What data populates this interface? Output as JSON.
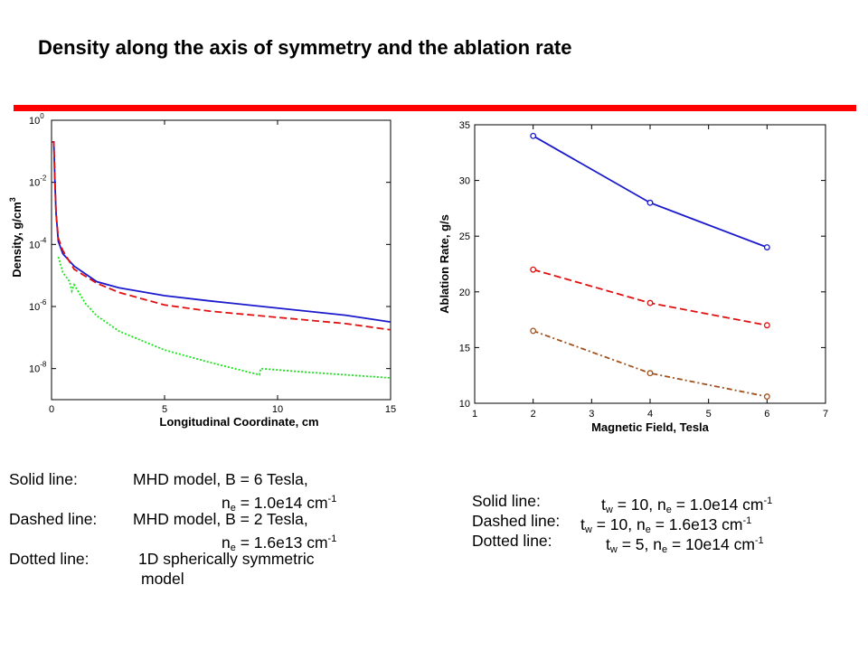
{
  "slide": {
    "title": "Density along the axis of symmetry and the ablation rate"
  },
  "colors": {
    "title_rule": "#ff0000",
    "solid": "#1a1acc",
    "dashed": "#e01010",
    "dotted": "#19e619",
    "dashdot": "#a0521e"
  },
  "chart_data": [
    {
      "type": "line",
      "log_y": true,
      "xlabel": "Longitudinal Coordinate, cm",
      "ylabel": "Density, g/cm",
      "ylabel_sup": "3",
      "xlim": [
        0,
        15
      ],
      "ylim_exp": [
        -9,
        0
      ],
      "x_ticks": [
        "0",
        "5",
        "10",
        "15"
      ],
      "y_tick_exps": [
        "0",
        "-2",
        "-4",
        "-6",
        "-8"
      ],
      "y_tick_base": "10",
      "grid": false,
      "series": [
        {
          "style": "solid",
          "x": [
            0,
            0.1,
            0.15,
            0.2,
            0.3,
            0.5,
            1.0,
            2.0,
            3.0,
            5.0,
            7.0,
            10.0,
            13.0,
            15.0
          ],
          "y_exp": [
            -0.7,
            -0.7,
            -2.0,
            -3.0,
            -3.9,
            -4.3,
            -4.7,
            -5.2,
            -5.4,
            -5.65,
            -5.82,
            -6.05,
            -6.28,
            -6.5
          ]
        },
        {
          "style": "dashed",
          "x": [
            0,
            0.1,
            0.15,
            0.2,
            0.3,
            0.5,
            1.0,
            2.0,
            3.0,
            5.0,
            7.0,
            10.0,
            13.0,
            15.0
          ],
          "y_exp": [
            -0.7,
            -0.7,
            -2.0,
            -3.0,
            -3.8,
            -4.2,
            -4.8,
            -5.25,
            -5.55,
            -5.95,
            -6.15,
            -6.35,
            -6.55,
            -6.75
          ]
        },
        {
          "style": "dotted",
          "x": [
            0.3,
            0.5,
            0.8,
            0.9,
            1.0,
            1.5,
            2.0,
            3.0,
            5.0,
            7.0,
            9.2,
            9.25,
            11.0,
            13.0,
            15.0
          ],
          "y_exp": [
            -4.4,
            -4.9,
            -5.2,
            -5.5,
            -5.3,
            -5.9,
            -6.3,
            -6.8,
            -7.4,
            -7.8,
            -8.2,
            -8.0,
            -8.1,
            -8.2,
            -8.3
          ]
        }
      ]
    },
    {
      "type": "line",
      "xlabel": "Magnetic Field, Tesla",
      "ylabel": "Ablation Rate, g/s",
      "xlim": [
        1,
        7
      ],
      "ylim": [
        10,
        35
      ],
      "x_ticks": [
        "1",
        "2",
        "3",
        "4",
        "5",
        "6",
        "7"
      ],
      "y_ticks": [
        "10",
        "15",
        "20",
        "25",
        "30",
        "35"
      ],
      "grid": false,
      "series": [
        {
          "style": "solid",
          "x": [
            2,
            4,
            6
          ],
          "y": [
            34,
            28,
            24
          ]
        },
        {
          "style": "dashed",
          "x": [
            2,
            4,
            6
          ],
          "y": [
            22,
            19,
            17
          ]
        },
        {
          "style": "dashdot",
          "x": [
            2,
            4,
            6
          ],
          "y": [
            16.5,
            12.7,
            10.6
          ]
        }
      ]
    }
  ],
  "legend_left": {
    "r1a": "Solid line:",
    "r1b": "MHD model, B = 6 Tesla,",
    "r2_n": "n",
    "r2_sub": "e",
    "r2_val": " = 1.0e14 cm",
    "r2_sup": "-1",
    "r3a": "Dashed line:",
    "r3b": "MHD model, B = 2 Tesla,",
    "r4_n": "n",
    "r4_sub": "e",
    "r4_val": " = 1.6e13 cm",
    "r4_sup": "-1",
    "r5a": "Dotted line:",
    "r5b": "1D spherically symmetric",
    "r6": "model"
  },
  "legend_right": {
    "r1a": "Solid line:",
    "r1_t": "t",
    "r1_tsub": "w",
    "r1_mid": " = 10, n",
    "r1_nsub": "e",
    "r1_val": " = 1.0e14 cm",
    "r1_sup": "-1",
    "r2a": "Dashed line:",
    "r2_t": "t",
    "r2_tsub": "w",
    "r2_mid": " = 10, n",
    "r2_nsub": "e",
    "r2_val": " = 1.6e13 cm",
    "r2_sup": "-1",
    "r3a": "Dotted line:",
    "r3_t": "t",
    "r3_tsub": "w",
    "r3_mid": " = 5,  n",
    "r3_nsub": "e",
    "r3_val": " = 10e14 cm",
    "r3_sup": "-1"
  }
}
